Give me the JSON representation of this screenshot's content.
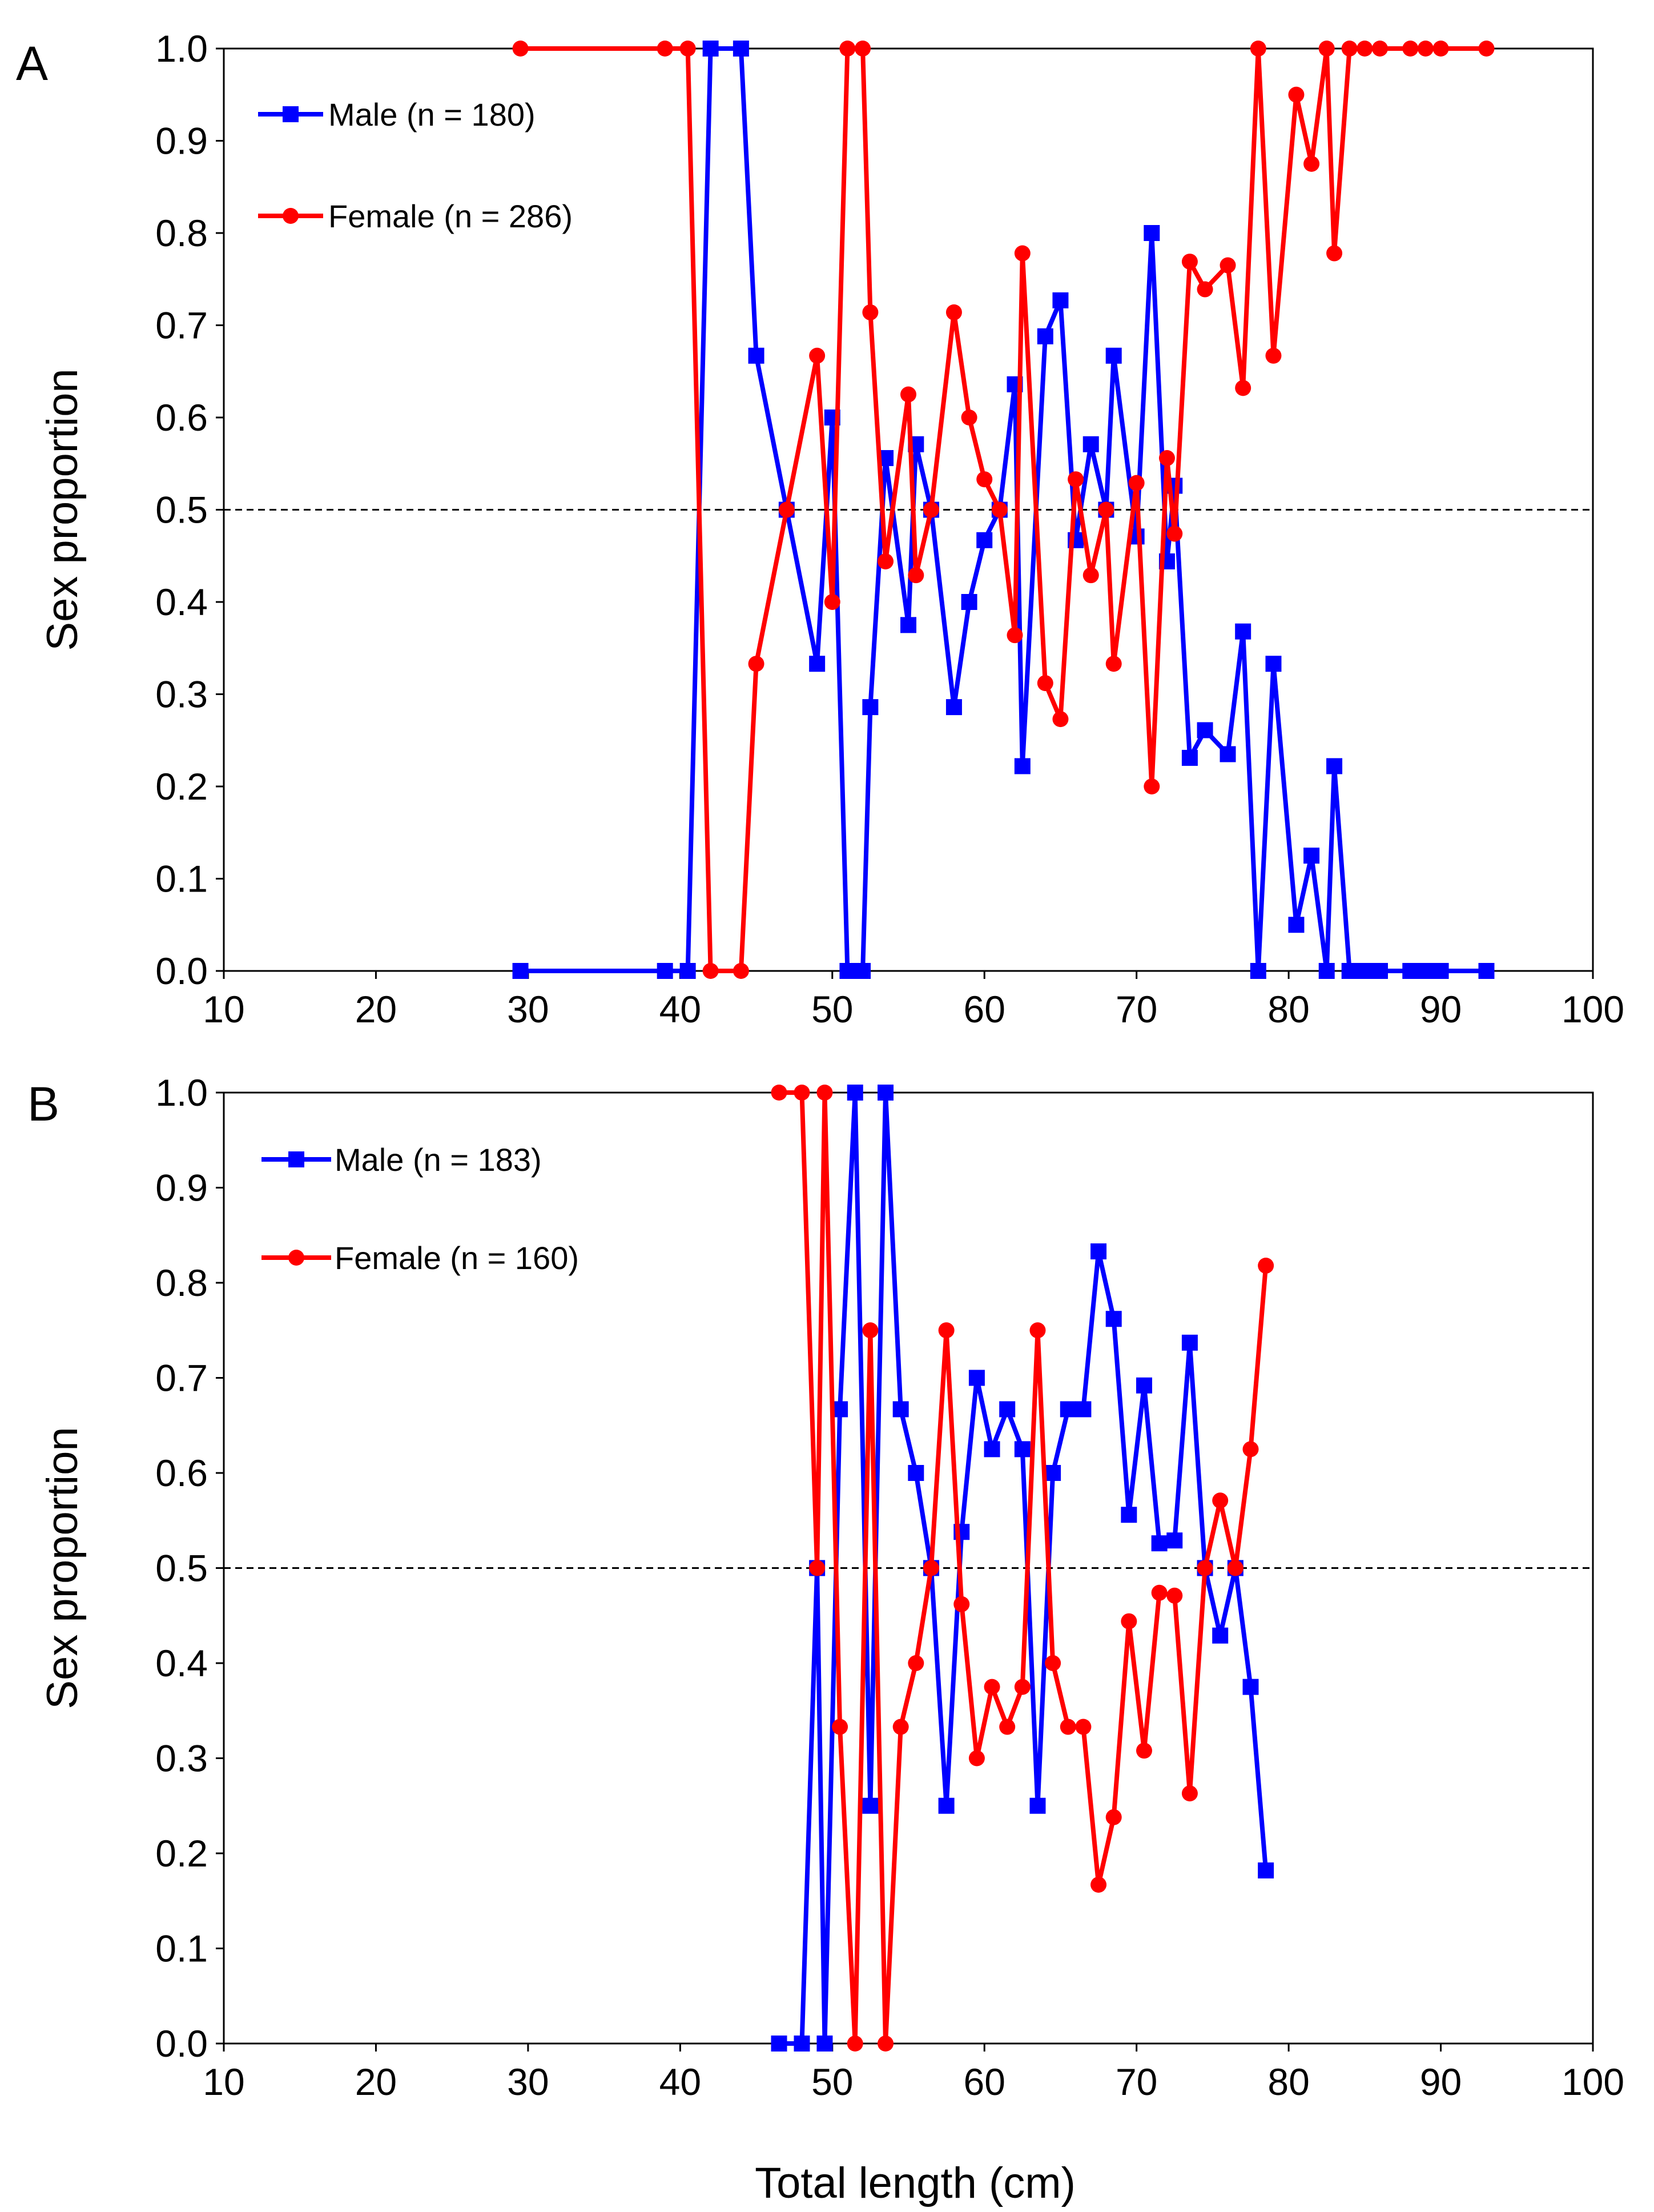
{
  "figure": {
    "xlabel": "Total length (cm)",
    "ylabel": "Sex proportion"
  },
  "chart_data": [
    {
      "panel": "A",
      "type": "line",
      "xlabel": "Total length (cm)",
      "ylabel": "Sex proportion",
      "xlim": [
        10,
        100
      ],
      "ylim": [
        0.0,
        1.0
      ],
      "x_ticks": [
        "10",
        "20",
        "30",
        "40",
        "50",
        "60",
        "70",
        "80",
        "90",
        "100"
      ],
      "y_ticks": [
        "0.0",
        "0.1",
        "0.2",
        "0.3",
        "0.4",
        "0.5",
        "0.6",
        "0.7",
        "0.8",
        "0.9",
        "1.0"
      ],
      "reference_line_y": 0.5,
      "legend": [
        "Male (n = 180)",
        "Female (n = 286)"
      ],
      "series": [
        {
          "name": "Male (n = 180)",
          "color": "#0000ff",
          "marker": "square",
          "x": [
            29.5,
            39,
            40.5,
            42,
            44,
            45,
            47,
            49,
            50,
            51,
            52,
            52.5,
            53.5,
            55,
            55.5,
            56.5,
            58,
            59,
            60,
            61,
            62,
            62.5,
            64,
            65,
            66,
            67,
            68,
            68.5,
            70,
            71,
            72,
            72.5,
            73.5,
            74.5,
            76,
            77,
            78,
            79,
            80.5,
            81.5,
            82.5,
            83,
            84,
            85,
            86,
            88,
            89,
            90,
            93
          ],
          "values": [
            0.0,
            0.0,
            0.0,
            1.0,
            1.0,
            0.667,
            0.5,
            0.333,
            0.6,
            0.0,
            0.0,
            0.286,
            0.556,
            0.375,
            0.571,
            0.5,
            0.286,
            0.4,
            0.467,
            0.5,
            0.636,
            0.222,
            0.688,
            0.727,
            0.467,
            0.571,
            0.5,
            0.667,
            0.471,
            0.8,
            0.444,
            0.526,
            0.231,
            0.261,
            0.235,
            0.368,
            0.0,
            0.333,
            0.05,
            0.125,
            0.0,
            0.222,
            0.0,
            0.0,
            0.0,
            0.0,
            0.0,
            0.0,
            0.0
          ]
        },
        {
          "name": "Female (n = 286)",
          "color": "#ff0000",
          "marker": "circle",
          "x": [
            29.5,
            39,
            40.5,
            42,
            44,
            45,
            47,
            49,
            50,
            51,
            52,
            52.5,
            53.5,
            55,
            55.5,
            56.5,
            58,
            59,
            60,
            61,
            62,
            62.5,
            64,
            65,
            66,
            67,
            68,
            68.5,
            70,
            71,
            72,
            72.5,
            73.5,
            74.5,
            76,
            77,
            78,
            79,
            80.5,
            81.5,
            82.5,
            83,
            84,
            85,
            86,
            88,
            89,
            90,
            93
          ],
          "values": [
            1.0,
            1.0,
            1.0,
            0.0,
            0.0,
            0.333,
            0.5,
            0.667,
            0.4,
            1.0,
            1.0,
            0.714,
            0.444,
            0.625,
            0.429,
            0.5,
            0.714,
            0.6,
            0.533,
            0.5,
            0.364,
            0.778,
            0.312,
            0.273,
            0.533,
            0.429,
            0.5,
            0.333,
            0.529,
            0.2,
            0.556,
            0.474,
            0.769,
            0.739,
            0.765,
            0.632,
            1.0,
            0.667,
            0.95,
            0.875,
            1.0,
            0.778,
            1.0,
            1.0,
            1.0,
            1.0,
            1.0,
            1.0,
            1.0
          ]
        }
      ]
    },
    {
      "panel": "B",
      "type": "line",
      "xlabel": "Total length (cm)",
      "ylabel": "Sex proportion",
      "xlim": [
        10,
        100
      ],
      "ylim": [
        0.0,
        1.0
      ],
      "x_ticks": [
        "10",
        "20",
        "30",
        "40",
        "50",
        "60",
        "70",
        "80",
        "90",
        "100"
      ],
      "y_ticks": [
        "0.0",
        "0.1",
        "0.2",
        "0.3",
        "0.4",
        "0.5",
        "0.6",
        "0.7",
        "0.8",
        "0.9",
        "1.0"
      ],
      "reference_line_y": 0.5,
      "legend": [
        "Male (n = 183)",
        "Female (n = 160)"
      ],
      "series": [
        {
          "name": "Male (n = 183)",
          "color": "#0000ff",
          "marker": "square",
          "x": [
            46.5,
            48,
            49,
            49.5,
            50.5,
            51.5,
            52.5,
            53.5,
            54.5,
            55.5,
            56.5,
            57.5,
            58.5,
            59.5,
            60.5,
            61.5,
            62.5,
            63.5,
            64.5,
            65.5,
            66.5,
            67.5,
            68.5,
            69.5,
            70.5,
            71.5,
            72.5,
            73.5,
            74.5,
            75.5,
            76.5,
            77.5,
            78.5
          ],
          "values": [
            0.0,
            0.0,
            0.5,
            0.0,
            0.667,
            1.0,
            0.25,
            1.0,
            0.667,
            0.6,
            0.5,
            0.25,
            0.538,
            0.7,
            0.625,
            0.667,
            0.625,
            0.25,
            0.6,
            0.667,
            0.667,
            0.833,
            0.762,
            0.556,
            0.692,
            0.526,
            0.529,
            0.737,
            0.5,
            0.429,
            0.5,
            0.375,
            0.182
          ]
        },
        {
          "name": "Female (n = 160)",
          "color": "#ff0000",
          "marker": "circle",
          "x": [
            46.5,
            48,
            49,
            49.5,
            50.5,
            51.5,
            52.5,
            53.5,
            54.5,
            55.5,
            56.5,
            57.5,
            58.5,
            59.5,
            60.5,
            61.5,
            62.5,
            63.5,
            64.5,
            65.5,
            66.5,
            67.5,
            68.5,
            69.5,
            70.5,
            71.5,
            72.5,
            73.5,
            74.5,
            75.5,
            76.5,
            77.5,
            78.5
          ],
          "values": [
            1.0,
            1.0,
            0.5,
            1.0,
            0.333,
            0.0,
            0.75,
            0.0,
            0.333,
            0.4,
            0.5,
            0.75,
            0.462,
            0.3,
            0.375,
            0.333,
            0.375,
            0.75,
            0.4,
            0.333,
            0.333,
            0.167,
            0.238,
            0.444,
            0.308,
            0.474,
            0.471,
            0.263,
            0.5,
            0.571,
            0.5,
            0.625,
            0.818
          ]
        }
      ]
    }
  ]
}
